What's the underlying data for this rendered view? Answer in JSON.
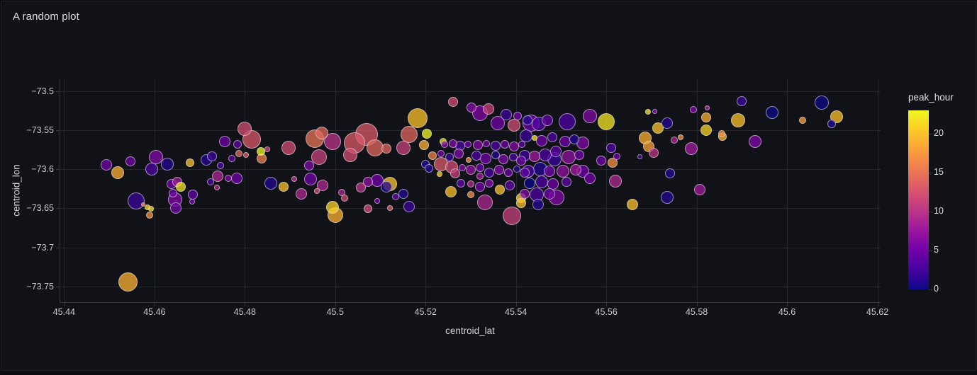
{
  "panel": {
    "title": "A random plot"
  },
  "colors": {
    "page_bg": "#0c0d10",
    "panel_bg": "#111217",
    "panel_border": "#22242a",
    "title_text": "#dcdcde",
    "grid": "#24262c",
    "axis": "#34363d",
    "tick_text": "#c9cace",
    "axis_title_text": "#d2d3d7",
    "colorbar_text": "#dfe0e3",
    "marker_outline": "rgba(219,220,226,0.62)"
  },
  "chart_data": {
    "type": "scatter",
    "title": "A random plot",
    "xlabel": "centroid_lat",
    "ylabel": "centroid_lon",
    "grid": true,
    "legend_position": "right-colorbar",
    "xlim": [
      45.439,
      45.6207
    ],
    "ylim": [
      -73.7702,
      -73.4846
    ],
    "x_ticks": {
      "values": [
        45.44,
        45.46,
        45.48,
        45.5,
        45.52,
        45.54,
        45.56,
        45.58,
        45.6,
        45.62
      ],
      "labels": [
        "45.44",
        "45.46",
        "45.48",
        "45.5",
        "45.52",
        "45.54",
        "45.56",
        "45.58",
        "45.6",
        "45.62"
      ]
    },
    "y_ticks": {
      "values": [
        -73.5,
        -73.55,
        -73.6,
        -73.65,
        -73.7,
        -73.75
      ],
      "labels": [
        "−73.5",
        "−73.55",
        "−73.6",
        "−73.65",
        "−73.7",
        "−73.75"
      ]
    },
    "colorbar": {
      "title": "peak_hour",
      "cmin": 0,
      "cmax": 23,
      "tick_values": [
        0,
        5,
        10,
        15,
        20
      ],
      "tick_labels": [
        "0",
        "5",
        "10",
        "15",
        "20"
      ],
      "colorscale_name": "plasma",
      "colorscale": [
        [
          0.0,
          "#0d0887"
        ],
        [
          0.1111,
          "#46039f"
        ],
        [
          0.2222,
          "#7201a8"
        ],
        [
          0.3333,
          "#9c179e"
        ],
        [
          0.4444,
          "#bd3786"
        ],
        [
          0.5556,
          "#d8576b"
        ],
        [
          0.6667,
          "#ed7953"
        ],
        [
          0.7778,
          "#fb9f3a"
        ],
        [
          0.8889,
          "#fdca26"
        ],
        [
          1.0,
          "#f0f921"
        ]
      ]
    },
    "marker_opacity": 0.75,
    "point_format": [
      "centroid_lat",
      "centroid_lon",
      "radius_px",
      "peak_hour"
    ],
    "points": [
      [
        45.4493,
        -73.5943,
        8,
        5
      ],
      [
        45.4518,
        -73.6043,
        9,
        19
      ],
      [
        45.4547,
        -73.5898,
        7,
        5
      ],
      [
        45.4603,
        -73.5843,
        10,
        6
      ],
      [
        45.4594,
        -73.5998,
        9,
        3
      ],
      [
        45.4628,
        -73.5934,
        9,
        1
      ],
      [
        45.4678,
        -73.5916,
        6,
        20
      ],
      [
        45.4559,
        -73.6406,
        12,
        2
      ],
      [
        45.4575,
        -73.6451,
        3,
        16
      ],
      [
        45.4584,
        -73.6487,
        4,
        21
      ],
      [
        45.4592,
        -73.6505,
        4,
        22
      ],
      [
        45.4589,
        -73.6587,
        5,
        17
      ],
      [
        45.4542,
        -73.744,
        13.5,
        19
      ],
      [
        45.4715,
        -73.588,
        8,
        1
      ],
      [
        45.4727,
        -73.5834,
        7,
        2
      ],
      [
        45.4746,
        -73.5952,
        5,
        3
      ],
      [
        45.4755,
        -73.5644,
        8,
        5
      ],
      [
        45.4771,
        -73.5861,
        5,
        4
      ],
      [
        45.4784,
        -73.568,
        6,
        4
      ],
      [
        45.4799,
        -73.5481,
        10,
        12
      ],
      [
        45.4815,
        -73.5617,
        13,
        13
      ],
      [
        45.4787,
        -73.5798,
        5,
        14
      ],
      [
        45.4803,
        -73.5816,
        4,
        13
      ],
      [
        45.4836,
        -73.5771,
        6,
        23
      ],
      [
        45.4837,
        -73.5861,
        7,
        16
      ],
      [
        45.485,
        -73.5744,
        4,
        11
      ],
      [
        45.4897,
        -73.5726,
        10,
        12
      ],
      [
        45.4955,
        -73.5608,
        13,
        15
      ],
      [
        45.4971,
        -73.5535,
        9,
        14
      ],
      [
        45.4964,
        -73.5843,
        11,
        11
      ],
      [
        45.4942,
        -73.5952,
        7,
        6
      ],
      [
        45.4945,
        -73.6125,
        9,
        5
      ],
      [
        45.4972,
        -73.6206,
        8,
        9
      ],
      [
        45.4959,
        -73.6279,
        4,
        12
      ],
      [
        45.4994,
        -73.5644,
        12,
        10
      ],
      [
        45.5014,
        -73.6297,
        5,
        9
      ],
      [
        45.5021,
        -73.6369,
        5,
        12
      ],
      [
        45.5033,
        -73.5816,
        10,
        12
      ],
      [
        45.5043,
        -73.5662,
        15,
        13
      ],
      [
        45.5069,
        -73.5553,
        16,
        13
      ],
      [
        45.5088,
        -73.5726,
        12,
        14
      ],
      [
        45.5113,
        -73.5735,
        7,
        14
      ],
      [
        45.5151,
        -73.5726,
        10,
        11
      ],
      [
        45.5164,
        -73.5553,
        12,
        14
      ],
      [
        45.5182,
        -73.5345,
        14,
        20
      ],
      [
        45.5203,
        -73.5544,
        7,
        23
      ],
      [
        45.5261,
        -73.5136,
        7,
        12
      ],
      [
        45.5057,
        -73.6233,
        7,
        10
      ],
      [
        45.5072,
        -73.6161,
        7,
        7
      ],
      [
        45.5093,
        -73.6143,
        9,
        5
      ],
      [
        45.5113,
        -73.6224,
        8,
        1
      ],
      [
        45.5121,
        -73.6188,
        10,
        20
      ],
      [
        45.5151,
        -73.6315,
        7,
        1
      ],
      [
        45.5134,
        -73.6351,
        5,
        4
      ],
      [
        45.5093,
        -73.6406,
        4,
        5
      ],
      [
        45.5163,
        -73.6478,
        8,
        2
      ],
      [
        45.4994,
        -73.6487,
        9,
        21
      ],
      [
        45.5,
        -73.6587,
        11,
        19
      ],
      [
        45.5072,
        -73.6505,
        6,
        12
      ],
      [
        45.5121,
        -73.6496,
        4,
        13
      ],
      [
        45.4638,
        -73.6188,
        7,
        5
      ],
      [
        45.465,
        -73.6161,
        7,
        8
      ],
      [
        45.4658,
        -73.6224,
        7,
        22
      ],
      [
        45.4641,
        -73.6306,
        6,
        5
      ],
      [
        45.4685,
        -73.6324,
        7,
        4
      ],
      [
        45.4683,
        -73.6415,
        4,
        5
      ],
      [
        45.4724,
        -73.6161,
        5,
        3
      ],
      [
        45.4738,
        -73.6233,
        4,
        9
      ],
      [
        45.4763,
        -73.6116,
        5,
        6
      ],
      [
        45.474,
        -73.6088,
        8,
        9
      ],
      [
        45.4782,
        -73.6116,
        8,
        5
      ],
      [
        45.4857,
        -73.6179,
        9,
        1
      ],
      [
        45.4886,
        -73.6224,
        7,
        20
      ],
      [
        45.4909,
        -73.6125,
        4,
        10
      ],
      [
        45.4925,
        -73.6315,
        8,
        9
      ],
      [
        45.4645,
        -73.6387,
        10,
        6
      ],
      [
        45.4647,
        -73.6496,
        8,
        5
      ],
      [
        45.5196,
        -73.5689,
        7,
        19
      ],
      [
        45.5239,
        -73.5644,
        5,
        22
      ],
      [
        45.5231,
        -73.6061,
        4,
        21
      ],
      [
        45.5215,
        -73.5825,
        6,
        16
      ],
      [
        45.52,
        -73.5934,
        6,
        1
      ],
      [
        45.5207,
        -73.5988,
        6,
        1
      ],
      [
        45.5234,
        -73.5934,
        10,
        13
      ],
      [
        45.5258,
        -73.597,
        9,
        12
      ],
      [
        45.5266,
        -73.6052,
        7,
        11
      ],
      [
        45.5242,
        -73.568,
        5,
        6
      ],
      [
        45.5261,
        -73.5671,
        6,
        6
      ],
      [
        45.5277,
        -73.5698,
        7,
        3
      ],
      [
        45.5294,
        -73.568,
        5,
        5
      ],
      [
        45.5316,
        -73.5689,
        7,
        6
      ],
      [
        45.5335,
        -73.5671,
        5,
        5
      ],
      [
        45.5355,
        -73.5698,
        7,
        3
      ],
      [
        45.5375,
        -73.568,
        6,
        5
      ],
      [
        45.5396,
        -73.5707,
        7,
        6
      ],
      [
        45.5413,
        -73.568,
        5,
        4
      ],
      [
        45.5234,
        -73.5798,
        5,
        5
      ],
      [
        45.5253,
        -73.5843,
        6,
        2
      ],
      [
        45.5273,
        -73.5798,
        7,
        6
      ],
      [
        45.5295,
        -73.588,
        4,
        17
      ],
      [
        45.5313,
        -73.5825,
        7,
        3
      ],
      [
        45.5333,
        -73.5861,
        8,
        5
      ],
      [
        45.5355,
        -73.5816,
        6,
        1
      ],
      [
        45.5372,
        -73.5871,
        7,
        6
      ],
      [
        45.5394,
        -73.5843,
        6,
        3
      ],
      [
        45.5412,
        -73.5889,
        7,
        5
      ],
      [
        45.5281,
        -73.5979,
        5,
        6
      ],
      [
        45.53,
        -73.6007,
        7,
        7
      ],
      [
        45.532,
        -73.5979,
        6,
        5
      ],
      [
        45.532,
        -73.6088,
        5,
        8
      ],
      [
        45.5341,
        -73.6043,
        7,
        3
      ],
      [
        45.5363,
        -73.6007,
        7,
        6
      ],
      [
        45.5383,
        -73.6043,
        6,
        5
      ],
      [
        45.5402,
        -73.5997,
        5,
        1
      ],
      [
        45.5419,
        -73.6043,
        7,
        4
      ],
      [
        45.5256,
        -73.6288,
        8,
        20
      ],
      [
        45.5278,
        -73.6179,
        6,
        4
      ],
      [
        45.53,
        -73.6188,
        5,
        9
      ],
      [
        45.53,
        -73.6324,
        5,
        17
      ],
      [
        45.532,
        -73.6224,
        7,
        5
      ],
      [
        45.5341,
        -73.6179,
        6,
        6
      ],
      [
        45.5364,
        -73.6261,
        7,
        20
      ],
      [
        45.5386,
        -73.6206,
        7,
        4
      ],
      [
        45.5412,
        -73.6369,
        7,
        21
      ],
      [
        45.5331,
        -73.6424,
        11,
        9
      ],
      [
        45.5391,
        -73.6596,
        13,
        11
      ],
      [
        45.5301,
        -73.5209,
        7,
        6
      ],
      [
        45.532,
        -73.5281,
        11,
        6
      ],
      [
        45.5339,
        -73.5227,
        8,
        11
      ],
      [
        45.536,
        -73.5408,
        10,
        5
      ],
      [
        45.5379,
        -73.5299,
        8,
        2
      ],
      [
        45.5396,
        -73.5435,
        9,
        12
      ],
      [
        45.5404,
        -73.5317,
        6,
        5
      ],
      [
        45.5426,
        -73.5372,
        7,
        1
      ],
      [
        45.5434,
        -73.5408,
        12,
        5
      ],
      [
        45.5451,
        -73.5417,
        10,
        3
      ],
      [
        45.547,
        -73.5372,
        8,
        4
      ],
      [
        45.5514,
        -73.539,
        12,
        3
      ],
      [
        45.5564,
        -73.5317,
        10,
        6
      ],
      [
        45.5599,
        -73.539,
        12,
        22
      ],
      [
        45.5423,
        -73.5571,
        9,
        2
      ],
      [
        45.5441,
        -73.5599,
        4,
        22
      ],
      [
        45.5457,
        -73.5635,
        8,
        5
      ],
      [
        45.5481,
        -73.5589,
        7,
        3
      ],
      [
        45.5509,
        -73.5644,
        8,
        5
      ],
      [
        45.5529,
        -73.5617,
        7,
        1
      ],
      [
        45.5548,
        -73.5662,
        9,
        6
      ],
      [
        45.542,
        -73.5825,
        8,
        2
      ],
      [
        45.5441,
        -73.5834,
        8,
        8
      ],
      [
        45.5465,
        -73.5816,
        9,
        3
      ],
      [
        45.5488,
        -73.5771,
        8,
        4
      ],
      [
        45.5485,
        -73.5871,
        10,
        2
      ],
      [
        45.5516,
        -73.5843,
        10,
        7
      ],
      [
        45.554,
        -73.5816,
        7,
        5
      ],
      [
        45.5427,
        -73.6025,
        9,
        3
      ],
      [
        45.5454,
        -73.5997,
        10,
        1
      ],
      [
        45.5474,
        -73.6025,
        8,
        5
      ],
      [
        45.5504,
        -73.6025,
        9,
        7
      ],
      [
        45.5532,
        -73.6007,
        8,
        8
      ],
      [
        45.5548,
        -73.6025,
        9,
        5
      ],
      [
        45.543,
        -73.6179,
        8,
        0
      ],
      [
        45.5457,
        -73.6161,
        9,
        3
      ],
      [
        45.5482,
        -73.6188,
        8,
        5
      ],
      [
        45.5512,
        -73.6161,
        7,
        4
      ],
      [
        45.542,
        -73.6315,
        7,
        6
      ],
      [
        45.5446,
        -73.6324,
        10,
        3
      ],
      [
        45.5474,
        -73.6315,
        8,
        5
      ],
      [
        45.549,
        -73.636,
        11,
        6
      ],
      [
        45.5449,
        -73.6451,
        8,
        1
      ],
      [
        45.5412,
        -73.6433,
        7,
        20
      ],
      [
        45.5588,
        -73.5889,
        7,
        5
      ],
      [
        45.5564,
        -73.6116,
        8,
        5
      ],
      [
        45.5611,
        -73.5726,
        7,
        3
      ],
      [
        45.5623,
        -73.5834,
        5,
        5
      ],
      [
        45.5614,
        -73.5916,
        7,
        17
      ],
      [
        45.562,
        -73.6152,
        9,
        9
      ],
      [
        45.5674,
        -73.5843,
        3.5,
        2
      ],
      [
        45.5658,
        -73.6451,
        8,
        20
      ],
      [
        45.5735,
        -73.636,
        9,
        1
      ],
      [
        45.5692,
        -73.5263,
        4,
        22
      ],
      [
        45.5708,
        -73.5263,
        3.5,
        6
      ],
      [
        45.5686,
        -73.5599,
        9,
        19
      ],
      [
        45.5694,
        -73.5707,
        8,
        18
      ],
      [
        45.5715,
        -73.5472,
        8,
        20
      ],
      [
        45.5734,
        -73.5408,
        8,
        1
      ],
      [
        45.5751,
        -73.5626,
        5,
        9
      ],
      [
        45.5765,
        -73.5589,
        4,
        17
      ],
      [
        45.5788,
        -73.5735,
        9,
        8
      ],
      [
        45.5823,
        -73.5209,
        3.5,
        9
      ],
      [
        45.5821,
        -73.5335,
        7,
        19
      ],
      [
        45.5821,
        -73.5498,
        8,
        21
      ],
      [
        45.5856,
        -73.5544,
        5,
        17
      ],
      [
        45.5793,
        -73.5236,
        5,
        6
      ],
      [
        45.5741,
        -73.6052,
        7,
        1
      ],
      [
        45.5807,
        -73.6261,
        8,
        8
      ],
      [
        45.5705,
        -73.5789,
        7,
        10
      ],
      [
        45.59,
        -73.5127,
        7,
        2
      ],
      [
        45.5892,
        -73.5372,
        10,
        20
      ],
      [
        45.5967,
        -73.5272,
        9,
        0
      ],
      [
        45.593,
        -73.5644,
        9,
        6
      ],
      [
        45.6035,
        -73.5372,
        5,
        18
      ],
      [
        45.6077,
        -73.5145,
        10,
        0
      ],
      [
        45.611,
        -73.5326,
        9,
        20
      ],
      [
        45.6098,
        -73.5417,
        6,
        1
      ],
      [
        45.5857,
        -73.558,
        6,
        19
      ]
    ]
  }
}
